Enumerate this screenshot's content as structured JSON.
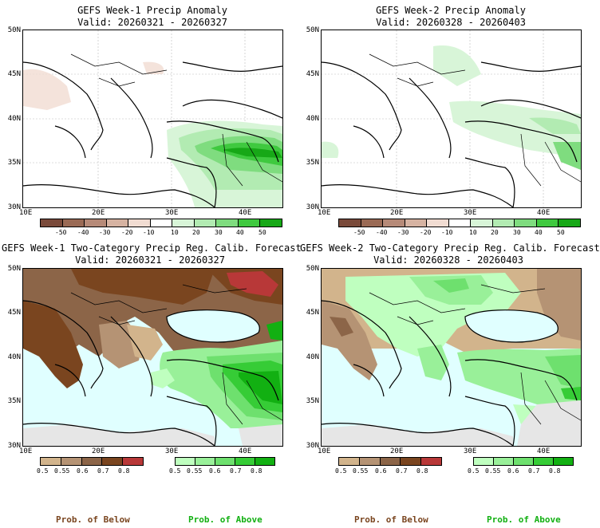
{
  "panels": {
    "tl": {
      "title1": "GEFS Week-1 Precip Anomaly",
      "title2": "Valid: 20260321 - 20260327"
    },
    "tr": {
      "title1": "GEFS Week-2 Precip Anomaly",
      "title2": "Valid: 20260328 - 20260403"
    },
    "bl": {
      "title1": "GEFS Week-1 Two-Category Precip Reg. Calib. Forecast",
      "title2": "Valid: 20260321 - 20260327"
    },
    "br": {
      "title1": "GEFS Week-2 Two-Category Precip Reg. Calib. Forecast",
      "title2": "Valid: 20260328 - 20260403"
    }
  },
  "axes": {
    "lat": [
      "50N",
      "45N",
      "40N",
      "35N",
      "30N"
    ],
    "lon": [
      "10E",
      "20E",
      "30E",
      "40E"
    ]
  },
  "anomaly_colorbar": {
    "labels": [
      "-50",
      "-40",
      "-30",
      "-20",
      "-10",
      "10",
      "20",
      "30",
      "40",
      "50"
    ],
    "colors": [
      "#7a4a3a",
      "#9a6a55",
      "#b68a78",
      "#d6b3a2",
      "#f1dcd2",
      "#ffffff",
      "#d8f5d8",
      "#b2ebb2",
      "#7fdc7f",
      "#3fc93f",
      "#17a817"
    ]
  },
  "prob_colorbar": {
    "below": {
      "labels": [
        "0.5",
        "0.55",
        "0.6",
        "0.7",
        "0.8"
      ],
      "colors": [
        "#d2b48c",
        "#b59374",
        "#8c6548",
        "#7a451f",
        "#b83838"
      ]
    },
    "above": {
      "labels": [
        "0.5",
        "0.55",
        "0.6",
        "0.7",
        "0.8"
      ],
      "colors": [
        "#bfffbf",
        "#99f099",
        "#6ee06e",
        "#36cc36",
        "#12b012"
      ]
    }
  },
  "footer": {
    "below": "Prob. of Below",
    "above": "Prob. of Above",
    "below_color": "#7a451f",
    "above_color": "#12b012"
  },
  "colors": {
    "sea": "#e0ffff",
    "dry_land": "#e6e6e6"
  }
}
